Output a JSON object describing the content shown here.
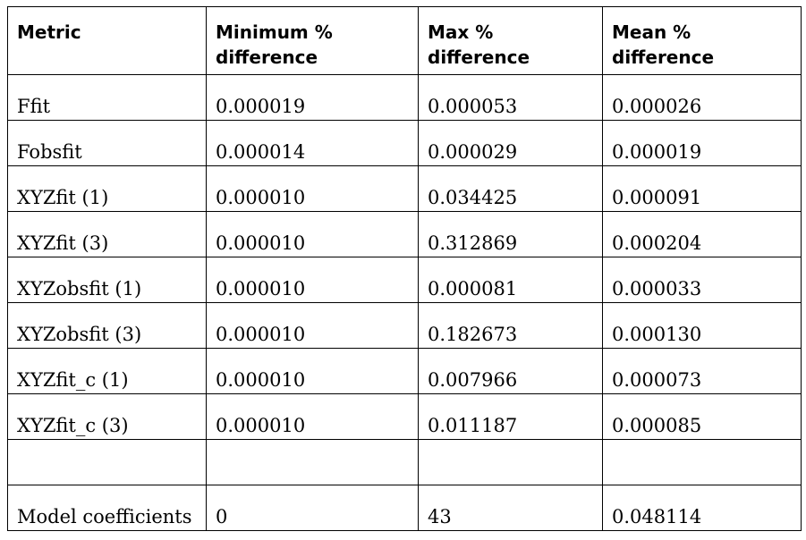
{
  "table": {
    "headers": [
      "Metric",
      "Minimum % difference",
      "Max % difference",
      "Mean % difference"
    ],
    "rows": [
      [
        "Ffit",
        "0.000019",
        "0.000053",
        "0.000026"
      ],
      [
        "Fobsfit",
        "0.000014",
        "0.000029",
        "0.000019"
      ],
      [
        "XYZfit (1)",
        "0.000010",
        "0.034425",
        "0.000091"
      ],
      [
        "XYZfit (3)",
        "0.000010",
        "0.312869",
        "0.000204"
      ],
      [
        "XYZobsfit (1)",
        "0.000010",
        "0.000081",
        "0.000033"
      ],
      [
        "XYZobsfit (3)",
        "0.000010",
        "0.182673",
        "0.000130"
      ],
      [
        "XYZfit_c (1)",
        "0.000010",
        "0.007966",
        "0.000073"
      ],
      [
        "XYZfit_c (3)",
        "0.000010",
        "0.011187",
        "0.000085"
      ],
      [
        "",
        "",
        "",
        ""
      ],
      [
        "Model coefficients",
        "0",
        "43",
        "0.048114"
      ]
    ]
  }
}
